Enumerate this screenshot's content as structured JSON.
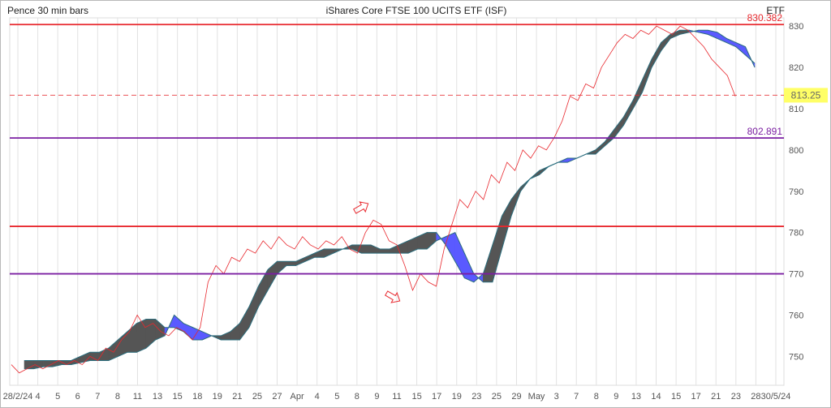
{
  "header": {
    "left": "Pence 30 min bars",
    "title": "iShares Core FTSE 100 UCITS ETF (ISF)",
    "right": "ETF"
  },
  "chart_data": {
    "type": "line",
    "title": "iShares Core FTSE 100 UCITS ETF (ISF)",
    "ylabel": "Pence",
    "ylim": [
      743,
      832
    ],
    "y_ticks": [
      750,
      760,
      770,
      780,
      790,
      800,
      810,
      820,
      830
    ],
    "grid": true,
    "x_tick_labels": [
      "28/2/24",
      "4",
      "5",
      "6",
      "7",
      "8",
      "11",
      "13",
      "15",
      "18",
      "19",
      "21",
      "25",
      "27",
      "Apr",
      "4",
      "5",
      "8",
      "9",
      "11",
      "15",
      "17",
      "19",
      "23",
      "25",
      "29",
      "May",
      "3",
      "7",
      "8",
      "9",
      "13",
      "14",
      "15",
      "17",
      "21",
      "23",
      "28",
      "30/5/24"
    ],
    "price_line": {
      "name": "Price",
      "color": "#e8282e",
      "values": [
        748,
        746,
        747,
        748,
        747,
        748,
        749,
        748,
        749,
        748,
        750,
        749,
        752,
        751,
        754,
        756,
        760,
        757,
        758,
        756,
        755,
        757,
        756,
        754,
        757,
        768,
        772,
        770,
        774,
        773,
        776,
        775,
        778,
        776,
        779,
        777,
        776,
        779,
        777,
        776,
        778,
        777,
        779,
        776,
        775,
        780,
        783,
        782,
        778,
        777,
        772,
        766,
        770,
        768,
        767,
        776,
        782,
        788,
        786,
        790,
        788,
        794,
        792,
        797,
        795,
        800,
        798,
        801,
        800,
        803,
        807,
        813,
        812,
        816,
        815,
        820,
        823,
        826,
        828,
        827,
        829,
        828,
        830,
        829,
        828,
        830,
        829,
        827,
        825,
        822,
        820,
        818,
        813
      ],
      "last_value": 813.25,
      "last_label": "813.25"
    },
    "cloud": {
      "span_a": [
        747,
        747,
        747.5,
        747.5,
        748,
        748,
        748.5,
        749,
        749,
        749,
        750,
        751,
        751,
        752,
        754,
        755,
        760,
        758,
        757,
        756,
        755,
        754,
        754,
        754,
        757,
        762,
        766,
        770,
        772,
        772,
        773,
        774,
        774,
        775,
        776,
        776,
        775,
        775,
        775,
        775,
        775,
        775,
        776,
        776,
        778,
        779,
        780,
        775,
        770,
        768,
        768,
        776,
        784,
        790,
        793,
        794,
        796,
        797,
        798,
        798,
        799,
        799,
        801,
        803,
        806,
        810,
        814,
        820,
        824,
        827,
        828,
        828.5,
        829,
        829,
        828.5,
        827,
        826,
        825,
        820
      ],
      "span_b": [
        749,
        749,
        749,
        749,
        749,
        749,
        750,
        751,
        751,
        752,
        754,
        756,
        758,
        759,
        759,
        757,
        757,
        756,
        754,
        754,
        755,
        755,
        756,
        758,
        762,
        767,
        771,
        773,
        773,
        773,
        774,
        775,
        776,
        776,
        776,
        777,
        777,
        777,
        776,
        776,
        777,
        778,
        779,
        780,
        780,
        777,
        773,
        769,
        768,
        770,
        777,
        784,
        788,
        791,
        793,
        795,
        796,
        797,
        797,
        798,
        799,
        800,
        802,
        805,
        808,
        812,
        817,
        822,
        826,
        828,
        829,
        829,
        828.5,
        828,
        827,
        826,
        825,
        823,
        821
      ],
      "bull_color": "#5a5aff",
      "bear_color": "#555555"
    },
    "levels": [
      {
        "value": 830.382,
        "label": "830.382",
        "color": "#e8282e"
      },
      {
        "value": 802.891,
        "label": "802.891",
        "color": "#7b1fa2"
      },
      {
        "value": 781.5,
        "label": "",
        "color": "#e8282e"
      },
      {
        "value": 770.0,
        "label": "",
        "color": "#7b1fa2"
      }
    ],
    "dashed_level": {
      "value": 813.25,
      "color": "#e8282e"
    },
    "annotations": [
      {
        "type": "arrow-up-right",
        "near_x_index": 17,
        "near_y_value": 789
      },
      {
        "type": "arrow-down-right",
        "near_x_index": 17,
        "near_y_value": 764
      }
    ]
  }
}
